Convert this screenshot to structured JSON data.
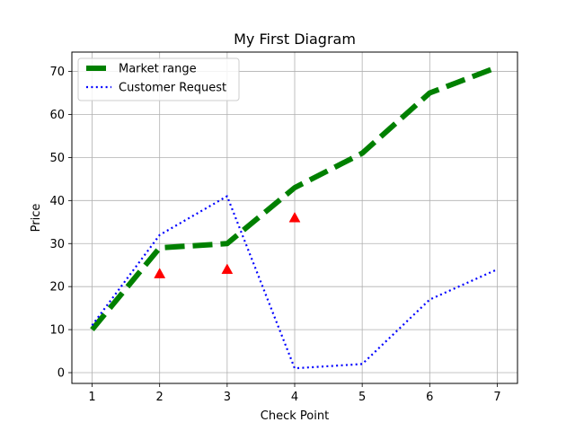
{
  "chart_data": {
    "type": "line",
    "title": "My First Diagram",
    "xlabel": "Check Point",
    "ylabel": "Price",
    "x": [
      1,
      2,
      3,
      4,
      5,
      6,
      7
    ],
    "xlim": [
      0.7,
      7.3
    ],
    "ylim": [
      -2.5,
      74.5
    ],
    "xticks": [
      1,
      2,
      3,
      4,
      5,
      6,
      7
    ],
    "yticks": [
      0,
      10,
      20,
      30,
      40,
      50,
      60,
      70
    ],
    "grid": true,
    "legend_position": "top-left",
    "series": [
      {
        "name": "Market range",
        "values": [
          10,
          29,
          30,
          43,
          51,
          65,
          71
        ],
        "color": "#008000",
        "style": "dashed"
      },
      {
        "name": "Customer Request",
        "values": [
          11,
          32,
          41,
          1,
          2,
          17,
          24
        ],
        "color": "#0000ff",
        "style": "dotted"
      }
    ],
    "markers": {
      "shape": "triangle-up",
      "color": "#ff0000",
      "points": [
        {
          "x": 2,
          "y": 23
        },
        {
          "x": 3,
          "y": 24
        },
        {
          "x": 4,
          "y": 36
        }
      ]
    }
  }
}
